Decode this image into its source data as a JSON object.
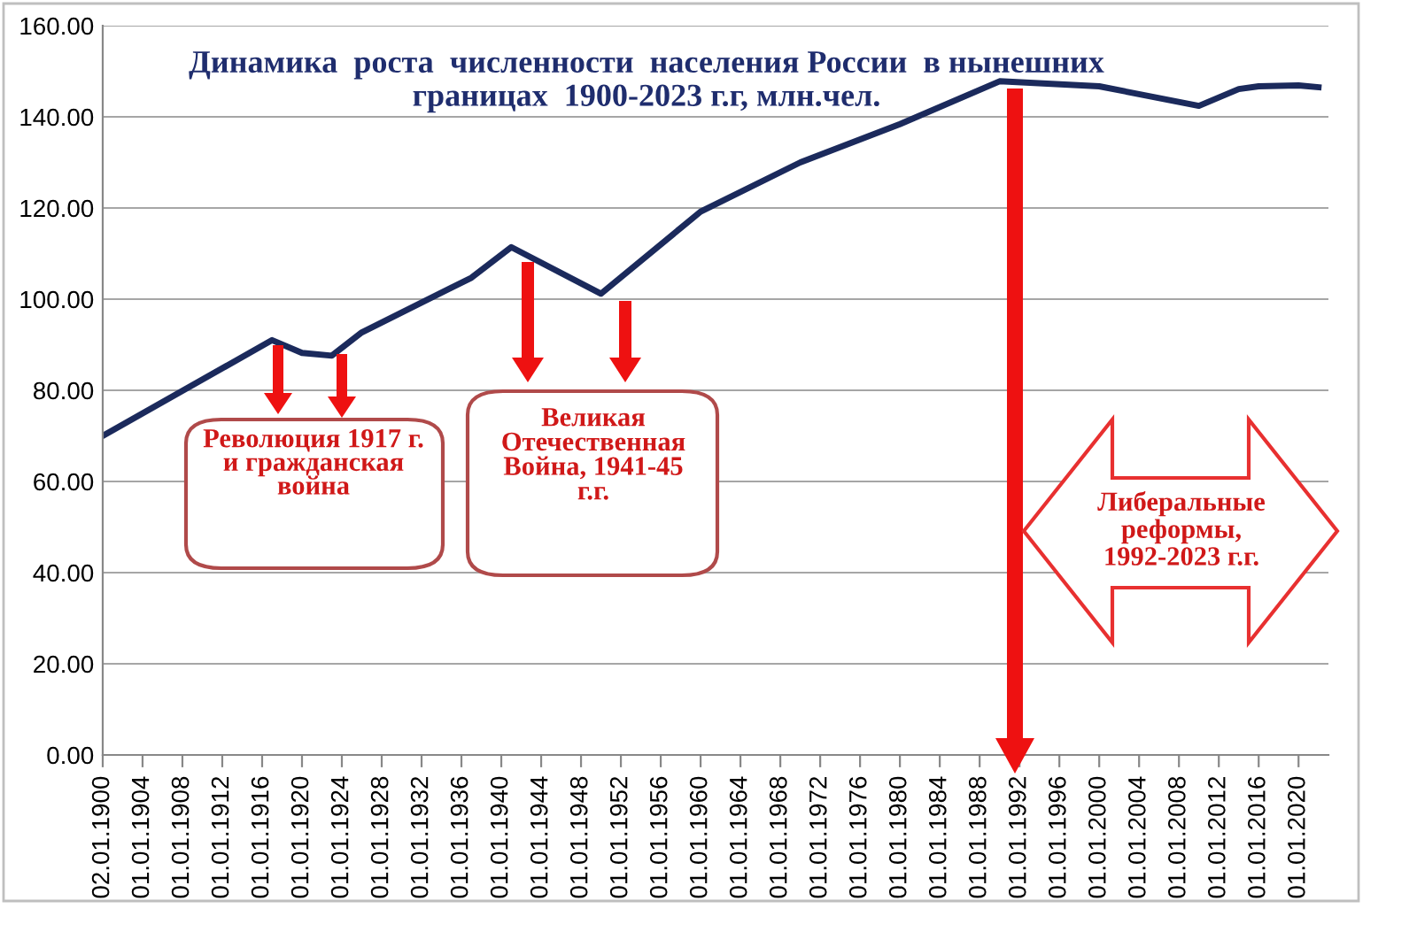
{
  "chart_data": {
    "type": "line",
    "title": "Динамика  роста  численности  населения России  в нынешних\nграницах  1900-2023 г.г, млн.чел.",
    "x": [
      "1900-01-02",
      "1917-01-01",
      "1920-01-01",
      "1923-01-01",
      "1926-01-01",
      "1937-01-01",
      "1941-01-01",
      "1950-01-01",
      "1960-01-01",
      "1970-01-01",
      "1980-01-01",
      "1990-01-01",
      "2000-01-01",
      "2010-01-01",
      "2014-01-01",
      "2016-01-01",
      "2020-01-01",
      "2022-01-01"
    ],
    "series": [
      {
        "color": "#1b2a5c",
        "values": [
          70,
          91,
          88.2,
          87.6,
          92.7,
          104.7,
          111.4,
          101.2,
          119.2,
          130,
          138.4,
          147.8,
          146.7,
          142.4,
          146.1,
          146.7,
          146.9,
          146.5
        ]
      }
    ],
    "xlim": [
      "1900-01-02",
      "2023-01-01"
    ],
    "xticks": [
      {
        "value": "1900-01-02",
        "label": "02.01.1900"
      },
      {
        "value": "1904-01-01",
        "label": "01.01.1904"
      },
      {
        "value": "1908-01-01",
        "label": "01.01.1908"
      },
      {
        "value": "1912-01-01",
        "label": "01.01.1912"
      },
      {
        "value": "1916-01-01",
        "label": "01.01.1916"
      },
      {
        "value": "1920-01-01",
        "label": "01.01.1920"
      },
      {
        "value": "1924-01-01",
        "label": "01.01.1924"
      },
      {
        "value": "1928-01-01",
        "label": "01.01.1928"
      },
      {
        "value": "1932-01-01",
        "label": "01.01.1932"
      },
      {
        "value": "1936-01-01",
        "label": "01.01.1936"
      },
      {
        "value": "1940-01-01",
        "label": "01.01.1940"
      },
      {
        "value": "1944-01-01",
        "label": "01.01.1944"
      },
      {
        "value": "1948-01-01",
        "label": "01.01.1948"
      },
      {
        "value": "1952-01-01",
        "label": "01.01.1952"
      },
      {
        "value": "1956-01-01",
        "label": "01.01.1956"
      },
      {
        "value": "1960-01-01",
        "label": "01.01.1960"
      },
      {
        "value": "1964-01-01",
        "label": "01.01.1964"
      },
      {
        "value": "1968-01-01",
        "label": "01.01.1968"
      },
      {
        "value": "1972-01-01",
        "label": "01.01.1972"
      },
      {
        "value": "1976-01-01",
        "label": "01.01.1976"
      },
      {
        "value": "1980-01-01",
        "label": "01.01.1980"
      },
      {
        "value": "1984-01-01",
        "label": "01.01.1984"
      },
      {
        "value": "1988-01-01",
        "label": "01.01.1988"
      },
      {
        "value": "1992-01-01",
        "label": "01.01.1992"
      },
      {
        "value": "1996-01-01",
        "label": "01.01.1996"
      },
      {
        "value": "2000-01-01",
        "label": "01.01.2000"
      },
      {
        "value": "2004-01-01",
        "label": "01.01.2004"
      },
      {
        "value": "2008-01-01",
        "label": "01.01.2008"
      },
      {
        "value": "2012-01-01",
        "label": "01.01.2012"
      },
      {
        "value": "2016-01-01",
        "label": "01.01.2016"
      },
      {
        "value": "2020-01-01",
        "label": "01.01.2020"
      }
    ],
    "ylim": [
      0,
      160
    ],
    "yticks": [
      {
        "value": 0,
        "label": "0.00"
      },
      {
        "value": 20,
        "label": "20.00"
      },
      {
        "value": 40,
        "label": "40.00"
      },
      {
        "value": 60,
        "label": "60.00"
      },
      {
        "value": 80,
        "label": "80.00"
      },
      {
        "value": 100,
        "label": "100.00"
      },
      {
        "value": 120,
        "label": "120.00"
      },
      {
        "value": 140,
        "label": "140.00"
      },
      {
        "value": 160,
        "label": "160.00"
      }
    ],
    "grid": "y",
    "marker": "none",
    "line_style": "solid",
    "legend": false,
    "annotations": [
      "Революция 1917 г.\nи гражданская\nвойна",
      "Великая\nОтечественная\nВойна, 1941-45\nг.г.",
      "Либеральные\nреформы,\n1992-2023 г.г."
    ]
  }
}
